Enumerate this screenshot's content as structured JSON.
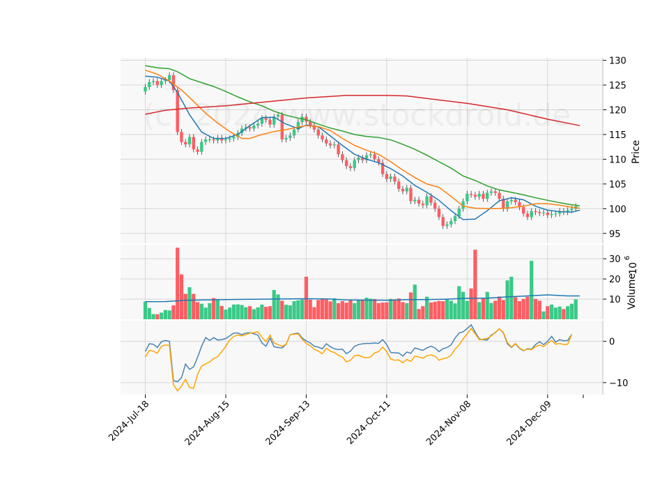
{
  "chart_data": [
    {
      "type": "candlestick",
      "panel": "price",
      "watermark": "(c) 2024 www.stockdroid.de",
      "ylabel": "Price",
      "ylim": [
        93,
        130.5
      ],
      "yticks": [
        95,
        100,
        105,
        110,
        115,
        120,
        125,
        130
      ],
      "x_tick_labels": [
        "2024-Jul-18",
        "2024-Aug-15",
        "2024-Sep-13",
        "2024-Oct-11",
        "2024-Nov-08",
        "2024-Dec-09"
      ],
      "x_tick_index": [
        0,
        20,
        40,
        60,
        80,
        100
      ],
      "candles_close_approx": [
        124.6,
        125.6,
        125.8,
        125.0,
        125.8,
        126.0,
        127.0,
        124.0,
        115.5,
        113.5,
        113.0,
        114.5,
        112.0,
        111.5,
        113.5,
        114.0,
        114.0,
        113.8,
        114.3,
        113.8,
        114.0,
        114.2,
        114.5,
        115.3,
        116.2,
        116.5,
        116.2,
        116.8,
        117.2,
        118.3,
        118.0,
        117.0,
        118.6,
        119.0,
        114.0,
        114.3,
        114.8,
        116.0,
        117.5,
        118.6,
        117.6,
        116.8,
        116.0,
        114.8,
        114.0,
        113.2,
        112.8,
        113.0,
        111.0,
        109.8,
        108.6,
        108.2,
        109.8,
        110.3,
        109.8,
        110.8,
        111.0,
        110.0,
        109.3,
        107.0,
        106.0,
        106.5,
        105.5,
        104.0,
        103.5,
        104.2,
        101.5,
        101.8,
        101.0,
        100.7,
        102.5,
        101.2,
        100.0,
        98.3,
        96.5,
        96.8,
        97.5,
        98.5,
        100.0,
        101.5,
        103.0,
        102.8,
        102.4,
        103.0,
        102.0,
        103.2,
        103.5,
        103.2,
        102.0,
        100.0,
        101.5,
        101.8,
        101.3,
        100.3,
        99.0,
        98.3,
        99.5,
        99.3,
        99.1,
        99.2,
        98.7,
        98.9,
        99.0,
        99.5,
        99.3,
        99.7,
        100.0,
        100.5
      ],
      "moving_averages": [
        {
          "name": "",
          "color": "#1f77b4",
          "points": [
            [
              0,
              126.8
            ],
            [
              3,
              126.6
            ],
            [
              6,
              125.8
            ],
            [
              8,
              123.5
            ],
            [
              11,
              119
            ],
            [
              14,
              115.5
            ],
            [
              17,
              114.2
            ],
            [
              20,
              114.2
            ],
            [
              23,
              115
            ],
            [
              26,
              116.8
            ],
            [
              29,
              118.4
            ],
            [
              32,
              118.5
            ],
            [
              35,
              117.1
            ],
            [
              38,
              116.2
            ],
            [
              40,
              116.9
            ],
            [
              43,
              116.6
            ],
            [
              46,
              114.7
            ],
            [
              49,
              112.8
            ],
            [
              52,
              111.0
            ],
            [
              55,
              110.0
            ],
            [
              58,
              109.3
            ],
            [
              61,
              108.1
            ],
            [
              64,
              106.6
            ],
            [
              67,
              104.7
            ],
            [
              70,
              103.3
            ],
            [
              73,
              101.7
            ],
            [
              76,
              99.6
            ],
            [
              79,
              97.8
            ],
            [
              82,
              97.9
            ],
            [
              85,
              99.6
            ],
            [
              88,
              101.6
            ],
            [
              91,
              102.2
            ],
            [
              94,
              101.8
            ],
            [
              97,
              100.5
            ],
            [
              100,
              99.7
            ],
            [
              103,
              99.4
            ],
            [
              106,
              99.3
            ],
            [
              108,
              99.7
            ]
          ]
        },
        {
          "name": "",
          "color": "#ff7f0e",
          "points": [
            [
              0,
              128
            ],
            [
              3,
              127.2
            ],
            [
              6,
              125.8
            ],
            [
              9,
              124.0
            ],
            [
              12,
              121.7
            ],
            [
              15,
              119.3
            ],
            [
              18,
              117.3
            ],
            [
              21,
              115.6
            ],
            [
              24,
              114.2
            ],
            [
              26,
              114.2
            ],
            [
              29,
              115.0
            ],
            [
              32,
              115.6
            ],
            [
              35,
              116.0
            ],
            [
              38,
              116.5
            ],
            [
              40,
              116.8
            ],
            [
              43,
              116.6
            ],
            [
              46,
              115.8
            ],
            [
              49,
              114.2
            ],
            [
              52,
              112.8
            ],
            [
              55,
              111.8
            ],
            [
              58,
              111.0
            ],
            [
              61,
              109.5
            ],
            [
              64,
              107.8
            ],
            [
              67,
              106.3
            ],
            [
              70,
              105.0
            ],
            [
              73,
              104.3
            ],
            [
              76,
              102.5
            ],
            [
              79,
              100.5
            ],
            [
              82,
              100.1
            ],
            [
              85,
              100.0
            ],
            [
              88,
              100.0
            ],
            [
              91,
              100.2
            ],
            [
              94,
              100.5
            ],
            [
              97,
              101.0
            ],
            [
              100,
              101.0
            ],
            [
              103,
              100.7
            ],
            [
              106,
              100.3
            ],
            [
              108,
              100.1
            ]
          ]
        },
        {
          "name": "",
          "color": "#2ca02c",
          "points": [
            [
              0,
              128.9
            ],
            [
              3,
              128.5
            ],
            [
              6,
              128.3
            ],
            [
              8,
              127.7
            ],
            [
              11,
              126.3
            ],
            [
              14,
              125.5
            ],
            [
              17,
              124.7
            ],
            [
              20,
              123.7
            ],
            [
              23,
              122.6
            ],
            [
              26,
              121.6
            ],
            [
              29,
              120.8
            ],
            [
              32,
              119.7
            ],
            [
              35,
              118.9
            ],
            [
              38,
              118.3
            ],
            [
              40,
              118.0
            ],
            [
              43,
              117.1
            ],
            [
              46,
              116.3
            ],
            [
              49,
              115.7
            ],
            [
              52,
              115.0
            ],
            [
              55,
              114.6
            ],
            [
              58,
              114.4
            ],
            [
              61,
              113.9
            ],
            [
              64,
              113.0
            ],
            [
              67,
              112.0
            ],
            [
              70,
              110.8
            ],
            [
              73,
              109.5
            ],
            [
              76,
              108.2
            ],
            [
              79,
              106.6
            ],
            [
              82,
              105.7
            ],
            [
              85,
              104.6
            ],
            [
              88,
              103.8
            ],
            [
              91,
              103.3
            ],
            [
              94,
              102.8
            ],
            [
              97,
              102.2
            ],
            [
              100,
              101.7
            ],
            [
              103,
              101.2
            ],
            [
              106,
              100.8
            ],
            [
              108,
              100.6
            ]
          ]
        },
        {
          "name": "",
          "color": "#d62728",
          "points": [
            [
              0,
              119.1
            ],
            [
              5,
              119.9
            ],
            [
              10,
              120.3
            ],
            [
              20,
              120.8
            ],
            [
              30,
              121.6
            ],
            [
              40,
              122.4
            ],
            [
              50,
              122.9
            ],
            [
              60,
              122.9
            ],
            [
              65,
              122.8
            ],
            [
              70,
              122.3
            ],
            [
              80,
              121.3
            ],
            [
              90,
              120.0
            ],
            [
              100,
              118.1
            ],
            [
              108,
              116.8
            ]
          ]
        }
      ]
    },
    {
      "type": "bar",
      "panel": "volume",
      "ylabel": "Volume",
      "exponent_label": "10",
      "exponent_power": "6",
      "ylim": [
        0,
        37
      ],
      "yticks": [
        10,
        20,
        30
      ],
      "values_millions": [
        8.8,
        5.6,
        2.6,
        2.5,
        3.3,
        4.6,
        4.4,
        6.9,
        35.5,
        22.3,
        12.6,
        15.9,
        12.6,
        8.5,
        7.7,
        5.8,
        8.0,
        10.5,
        9.6,
        6.6,
        4.8,
        5.8,
        7.3,
        7.4,
        7.1,
        6.0,
        6.5,
        5.0,
        5.9,
        7.3,
        6.2,
        6.5,
        14.5,
        12.3,
        9.2,
        7.2,
        6.9,
        9.0,
        9.4,
        9.8,
        21.1,
        9.7,
        6.0,
        9.6,
        10.2,
        9.8,
        8.9,
        10.4,
        8.0,
        9.0,
        8.2,
        9.5,
        8.0,
        9.5,
        9.6,
        10.7,
        10.2,
        10.0,
        8.0,
        8.3,
        8.4,
        10.1,
        9.8,
        10.3,
        8.5,
        8.0,
        13.3,
        17.2,
        5.1,
        6.5,
        11.2,
        8.3,
        8.7,
        9.1,
        9.0,
        10.1,
        9.2,
        7.9,
        16.4,
        13.6,
        9.1,
        15.3,
        34.5,
        8.5,
        10.4,
        13.6,
        8.1,
        9.2,
        11.3,
        9.5,
        19.3,
        21.1,
        11.0,
        9.0,
        10.1,
        11.2,
        29.0,
        10.1,
        9.2,
        3.9,
        6.5,
        7.3,
        5.8,
        6.3,
        5.1,
        6.5,
        7.7,
        9.9
      ],
      "moving_average": {
        "name": "",
        "color": "#1f77b4",
        "points": [
          [
            0,
            8.7
          ],
          [
            5,
            8.8
          ],
          [
            10,
            9.4
          ],
          [
            15,
            9.6
          ],
          [
            20,
            9.8
          ],
          [
            25,
            9.9
          ],
          [
            30,
            10.0
          ],
          [
            35,
            10.1
          ],
          [
            40,
            10.2
          ],
          [
            45,
            10.1
          ],
          [
            50,
            9.6
          ],
          [
            55,
            9.5
          ],
          [
            60,
            9.4
          ],
          [
            65,
            9.7
          ],
          [
            70,
            9.8
          ],
          [
            75,
            10.0
          ],
          [
            80,
            10.4
          ],
          [
            85,
            10.5
          ],
          [
            90,
            11.1
          ],
          [
            95,
            11.6
          ],
          [
            100,
            12.1
          ],
          [
            105,
            11.6
          ],
          [
            108,
            11.6
          ]
        ]
      }
    },
    {
      "type": "line",
      "panel": "oscillator",
      "ylim": [
        -12.9,
        5.0
      ],
      "yticks": [
        0,
        -10
      ],
      "ytick_labels": [
        "0",
        "−10"
      ],
      "series": [
        {
          "name": "",
          "color": "#4682b4",
          "values": [
            -2.5,
            -0.6,
            -0.7,
            -1.5,
            -0.1,
            0.2,
            0.0,
            -9.5,
            -9.8,
            -8.8,
            -5.5,
            -6.8,
            -6.2,
            -3.9,
            -1.2,
            0.9,
            0.2,
            0.9,
            0.3,
            0.4,
            0.7,
            1.3,
            2.0,
            2.0,
            1.6,
            2.0,
            2.1,
            1.8,
            1.5,
            -0.4,
            -1.2,
            0.8,
            -1.3,
            -1.5,
            -1.6,
            -0.7,
            1.6,
            1.8,
            2.0,
            0.8,
            0.1,
            -0.4,
            -1.2,
            -1.4,
            -1.8,
            -0.6,
            -1.3,
            -1.8,
            -2.0,
            -1.9,
            -3.0,
            -2.4,
            -1.2,
            -0.8,
            -0.6,
            -0.5,
            -0.5,
            -0.4,
            -0.5,
            0.4,
            -0.8,
            -2.7,
            -2.8,
            -2.8,
            -3.6,
            -2.6,
            -2.9,
            -1.6,
            -1.9,
            -2.2,
            -1.6,
            -1.2,
            -1.6,
            -2.5,
            -1.8,
            -1.5,
            -0.9,
            0.8,
            2.0,
            2.3,
            3.1,
            4.0,
            2.2,
            0.6,
            0.4,
            0.3,
            1.5,
            2.1,
            3.0,
            2.1,
            -0.6,
            -1.5,
            -0.6,
            -1.7,
            -2.3,
            -1.8,
            -1.9,
            -0.8,
            -0.1,
            -0.8,
            0.0,
            1.2,
            -0.2,
            0.4,
            0.1,
            0.2,
            1.7
          ]
        },
        {
          "name": "",
          "color": "#ffa500",
          "values": [
            -3.8,
            -2.2,
            -2.4,
            -2.9,
            -1.2,
            -0.9,
            -1.0,
            -10.5,
            -12.0,
            -10.8,
            -9.2,
            -11.2,
            -11.4,
            -8.0,
            -6.0,
            -5.5,
            -5.0,
            -4.2,
            -3.7,
            -2.5,
            -1.2,
            0.3,
            1.2,
            1.5,
            1.3,
            1.6,
            2.0,
            2.1,
            2.3,
            1.0,
            -0.1,
            1.5,
            -0.4,
            -0.8,
            -1.2,
            -0.7,
            1.6,
            1.7,
            1.8,
            0.5,
            -0.5,
            -1.1,
            -1.9,
            -2.4,
            -3.0,
            -1.7,
            -2.4,
            -2.7,
            -3.4,
            -3.8,
            -5.0,
            -4.6,
            -3.5,
            -3.4,
            -3.8,
            -4.0,
            -3.8,
            -2.8,
            -2.5,
            -1.4,
            -2.5,
            -4.3,
            -4.6,
            -4.5,
            -5.2,
            -4.4,
            -4.9,
            -3.6,
            -3.8,
            -4.1,
            -3.5,
            -3.3,
            -3.6,
            -4.6,
            -4.2,
            -4.0,
            -3.4,
            -1.9,
            -0.9,
            0.6,
            1.8,
            3.1,
            1.8,
            0.4,
            0.5,
            0.7,
            1.3,
            2.2,
            3.0,
            2.2,
            -0.3,
            -1.4,
            -0.5,
            -1.6,
            -2.2,
            -1.9,
            -2.0,
            -1.3,
            -0.9,
            -1.3,
            -0.5,
            0.2,
            -0.7,
            -0.5,
            -0.8,
            -0.7,
            1.7
          ]
        }
      ]
    }
  ]
}
